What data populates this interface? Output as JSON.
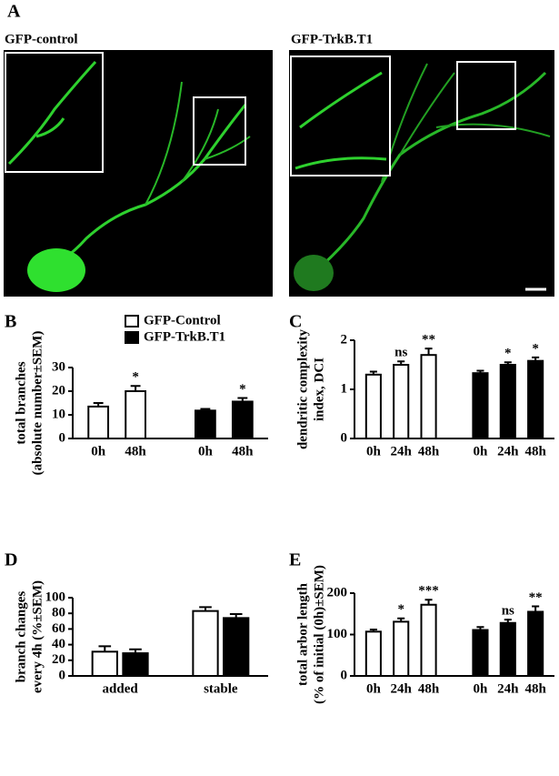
{
  "figure": {
    "panel": "A",
    "images": [
      "GFP-control",
      "GFP-TrkB.T1"
    ]
  },
  "chart_data": [
    {
      "type": "bar",
      "panel": "B",
      "ylabel": [
        "total branches",
        "(absolute number±SEM)"
      ],
      "categories": [
        "0h",
        "48h",
        "0h",
        "48h"
      ],
      "series": [
        {
          "name": "GFP-Control",
          "color": "#ffffff",
          "values": [
            13.5,
            20,
            null,
            null
          ],
          "errors": [
            1.5,
            2.2,
            null,
            null
          ],
          "stars": [
            null,
            "*",
            null,
            null
          ]
        },
        {
          "name": "GFP-TrkB.T1",
          "color": "#000000",
          "values": [
            null,
            null,
            11.8,
            15.6
          ],
          "errors": [
            null,
            null,
            0.7,
            1.5
          ],
          "stars": [
            null,
            null,
            null,
            "*"
          ]
        }
      ],
      "ylim": [
        0,
        30
      ],
      "yticks": [
        0,
        10,
        20,
        30
      ],
      "legend": "top"
    },
    {
      "type": "bar",
      "panel": "C",
      "ylabel": [
        "dendritic complexity",
        "index, DCI"
      ],
      "categories": [
        "0h",
        "24h",
        "48h",
        "0h",
        "24h",
        "48h"
      ],
      "series": [
        {
          "name": "GFP-Control",
          "color": "#ffffff",
          "values": [
            1.3,
            1.5,
            1.7,
            null,
            null,
            null
          ],
          "errors": [
            0.06,
            0.07,
            0.13,
            null,
            null,
            null
          ],
          "stars": [
            null,
            "ns",
            "**",
            null,
            null,
            null
          ]
        },
        {
          "name": "GFP-TrkB.T1",
          "color": "#000000",
          "values": [
            null,
            null,
            null,
            1.33,
            1.5,
            1.58
          ],
          "errors": [
            null,
            null,
            null,
            0.05,
            0.05,
            0.07
          ],
          "stars": [
            null,
            null,
            null,
            null,
            "*",
            "*"
          ]
        }
      ],
      "ylim": [
        0,
        2
      ],
      "yticks": [
        0,
        1,
        2
      ]
    },
    {
      "type": "bar",
      "panel": "D",
      "ylabel": [
        "branch changes",
        "every 4h (%±SEM)"
      ],
      "categories": [
        "added",
        "stable"
      ],
      "series": [
        {
          "name": "GFP-Control",
          "color": "#ffffff",
          "values": [
            31,
            83
          ],
          "errors": [
            7,
            5
          ]
        },
        {
          "name": "GFP-TrkB.T1",
          "color": "#000000",
          "values": [
            29,
            74
          ],
          "errors": [
            5,
            5
          ]
        }
      ],
      "ylim": [
        0,
        100
      ],
      "yticks": [
        0,
        20,
        40,
        60,
        80,
        100
      ]
    },
    {
      "type": "bar",
      "panel": "E",
      "ylabel": [
        "total arbor length",
        "(% of initial (0h)±SEM)"
      ],
      "categories": [
        "0h",
        "24h",
        "48h",
        "0h",
        "24h",
        "48h"
      ],
      "series": [
        {
          "name": "GFP-Control",
          "color": "#ffffff",
          "values": [
            107,
            131,
            172,
            null,
            null,
            null
          ],
          "errors": [
            5,
            8,
            12,
            null,
            null,
            null
          ],
          "stars": [
            null,
            "*",
            "***",
            null,
            null,
            null
          ]
        },
        {
          "name": "GFP-TrkB.T1",
          "color": "#000000",
          "values": [
            null,
            null,
            null,
            111,
            128,
            155
          ],
          "errors": [
            null,
            null,
            null,
            7,
            8,
            13
          ],
          "stars": [
            null,
            null,
            null,
            null,
            "ns",
            "**"
          ]
        }
      ],
      "ylim": [
        0,
        200
      ],
      "yticks": [
        0,
        100,
        200
      ]
    }
  ]
}
